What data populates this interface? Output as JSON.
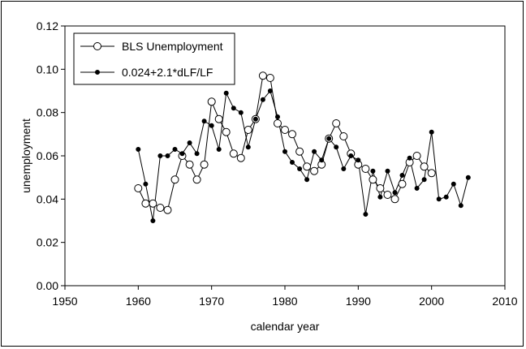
{
  "chart_data": {
    "type": "line",
    "title": "",
    "xlabel": "calendar year",
    "ylabel": "unemployment",
    "xlim": [
      1950,
      2010
    ],
    "ylim": [
      0.0,
      0.12
    ],
    "x_ticks": [
      "1950",
      "1960",
      "1970",
      "1980",
      "1990",
      "2000",
      "2010"
    ],
    "y_ticks": [
      "0.00",
      "0.02",
      "0.04",
      "0.06",
      "0.08",
      "0.10",
      "0.12"
    ],
    "grid": false,
    "legend_position": "top-left",
    "series": [
      {
        "name": "BLS Unemployment",
        "marker": "open-circle",
        "color": "#000000",
        "x": [
          1960,
          1961,
          1962,
          1963,
          1964,
          1965,
          1966,
          1967,
          1968,
          1969,
          1970,
          1971,
          1972,
          1973,
          1974,
          1975,
          1976,
          1977,
          1978,
          1979,
          1980,
          1981,
          1982,
          1983,
          1984,
          1985,
          1986,
          1987,
          1988,
          1989,
          1990,
          1991,
          1992,
          1993,
          1994,
          1995,
          1996,
          1997,
          1998,
          1999,
          2000
        ],
        "y": [
          0.045,
          0.038,
          0.038,
          0.036,
          0.035,
          0.049,
          0.06,
          0.056,
          0.049,
          0.056,
          0.085,
          0.077,
          0.071,
          0.061,
          0.059,
          0.072,
          0.077,
          0.097,
          0.096,
          0.075,
          0.072,
          0.07,
          0.062,
          0.055,
          0.053,
          0.056,
          0.068,
          0.075,
          0.069,
          0.061,
          0.056,
          0.054,
          0.049,
          0.045,
          0.042,
          0.04,
          0.047,
          0.057,
          0.06,
          0.055,
          0.052
        ]
      },
      {
        "name": "0.024+2.1*dLF/LF",
        "marker": "filled-dot",
        "color": "#000000",
        "x": [
          1960,
          1961,
          1962,
          1963,
          1964,
          1965,
          1966,
          1967,
          1968,
          1969,
          1970,
          1971,
          1972,
          1973,
          1974,
          1975,
          1976,
          1977,
          1978,
          1979,
          1980,
          1981,
          1982,
          1983,
          1984,
          1985,
          1986,
          1987,
          1988,
          1989,
          1990,
          1991,
          1992,
          1993,
          1994,
          1995,
          1996,
          1997,
          1998,
          1999,
          2000,
          2001,
          2002,
          2003,
          2004,
          2005
        ],
        "y": [
          0.063,
          0.047,
          0.03,
          0.06,
          0.06,
          0.063,
          0.061,
          0.066,
          0.061,
          0.076,
          0.074,
          0.063,
          0.089,
          0.082,
          0.08,
          0.064,
          0.077,
          0.086,
          0.09,
          0.078,
          0.062,
          0.057,
          0.054,
          0.049,
          0.062,
          0.058,
          0.068,
          0.064,
          0.054,
          0.06,
          0.058,
          0.033,
          0.053,
          0.041,
          0.053,
          0.043,
          0.051,
          0.059,
          0.045,
          0.049,
          0.071,
          0.04,
          0.041,
          0.047,
          0.037,
          0.05
        ]
      }
    ]
  }
}
